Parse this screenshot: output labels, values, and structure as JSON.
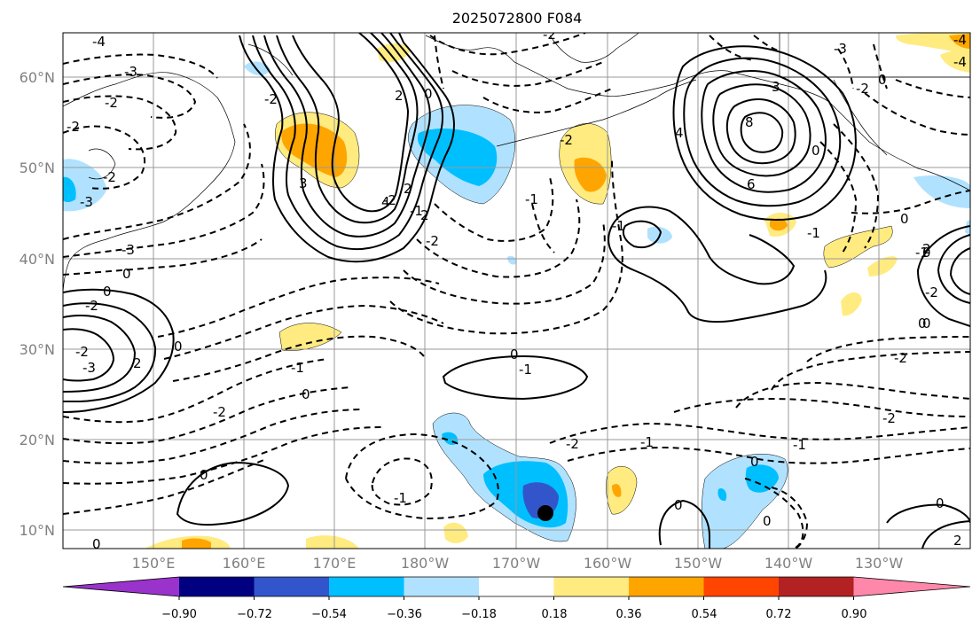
{
  "title": "2025072800 F084",
  "lat_labels": [
    "60°N",
    "50°N",
    "40°N",
    "30°N",
    "20°N",
    "10°N"
  ],
  "lon_labels": [
    "150°E",
    "160°E",
    "170°E",
    "180°W",
    "170°W",
    "160°W",
    "150°W",
    "140°W",
    "130°W"
  ],
  "colorbar": {
    "tick_labels": [
      "−0.90",
      "−0.72",
      "−0.54",
      "−0.36",
      "−0.18",
      "0.18",
      "0.36",
      "0.54",
      "0.72",
      "0.90"
    ],
    "colors": [
      "#9933cc",
      "#000080",
      "#3355cc",
      "#00bfff",
      "#b0e2ff",
      "#ffffff",
      "#ffeb80",
      "#ffa500",
      "#ff4500",
      "#b22222",
      "#ff88aa"
    ]
  },
  "colors": {
    "neg_light": "#b0e2ff",
    "neg_mid": "#00bfff",
    "neg_dark": "#3355cc",
    "pos_light": "#ffeb80",
    "pos_mid": "#ffa500",
    "pos_strong": "#ff4500",
    "contour": "#000000",
    "grid": "#999999"
  },
  "contour_labels": [
    "-4",
    "-3",
    "-2",
    "-2",
    "-3",
    "-3",
    "-2",
    "-2",
    "2",
    "2",
    "2",
    "0",
    "-2",
    "-1",
    "-2",
    "0",
    "0",
    "-2",
    "-3",
    "-2",
    "0",
    "0",
    "-1",
    "3",
    "4",
    "8",
    "6",
    "4",
    "-2",
    "0",
    "-1",
    "2",
    "-2",
    "0",
    "0",
    "-1",
    "-2",
    "-1",
    "0",
    "-2",
    "0",
    "-4",
    "-1",
    "-2",
    "-1",
    "0",
    "2",
    "0",
    "-1",
    "-1",
    "-2",
    "0",
    "0",
    "-1",
    "0",
    "0",
    "-2",
    "2",
    "3",
    "-3",
    "0",
    "0",
    "-2",
    "-4"
  ],
  "marker": {
    "type": "circle",
    "color": "#000000"
  }
}
